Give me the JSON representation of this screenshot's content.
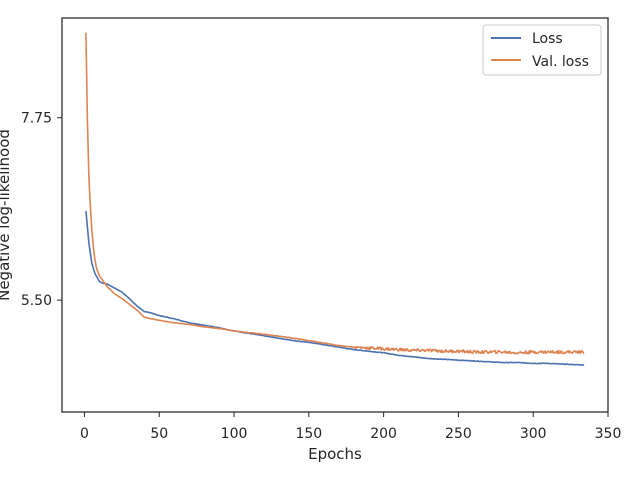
{
  "chart_data": {
    "type": "line",
    "xlabel": "Epochs",
    "ylabel": "Negative log-likelihood",
    "xlim": [
      -15,
      350
    ],
    "ylim": [
      4.12,
      8.98
    ],
    "xticks": [
      0,
      50,
      100,
      150,
      200,
      250,
      300,
      350
    ],
    "yticks": [
      5.5,
      7.75
    ],
    "ytick_labels": [
      "5.50",
      "7.75"
    ],
    "grid": false,
    "legend": "top-right",
    "series": [
      {
        "name": "Loss",
        "color": "#4c72b0",
        "noise": 0,
        "x": [
          1,
          3,
          5,
          7,
          10,
          12,
          15,
          20,
          25,
          30,
          35,
          40,
          45,
          50,
          60,
          70,
          80,
          90,
          100,
          120,
          140,
          150,
          160,
          170,
          180,
          190,
          200,
          210,
          220,
          230,
          240,
          250,
          260,
          270,
          280,
          290,
          300,
          310,
          320,
          334
        ],
        "y": [
          6.6,
          6.2,
          5.95,
          5.83,
          5.73,
          5.71,
          5.7,
          5.65,
          5.6,
          5.52,
          5.43,
          5.36,
          5.34,
          5.31,
          5.27,
          5.22,
          5.19,
          5.16,
          5.12,
          5.06,
          5.0,
          4.98,
          4.95,
          4.92,
          4.89,
          4.87,
          4.85,
          4.82,
          4.8,
          4.78,
          4.77,
          4.76,
          4.75,
          4.74,
          4.73,
          4.73,
          4.72,
          4.72,
          4.71,
          4.7
        ]
      },
      {
        "name": "Val. loss",
        "color": "#dd8452",
        "noise": 0.018,
        "x": [
          1,
          2,
          3,
          4,
          5,
          6,
          7,
          8,
          10,
          12,
          15,
          20,
          25,
          30,
          35,
          40,
          45,
          50,
          60,
          70,
          80,
          90,
          100,
          120,
          140,
          150,
          160,
          170,
          180,
          190,
          200,
          210,
          220,
          230,
          240,
          250,
          260,
          270,
          280,
          290,
          300,
          310,
          320,
          334
        ],
        "y": [
          8.8,
          7.7,
          7.0,
          6.65,
          6.35,
          6.15,
          6.0,
          5.9,
          5.8,
          5.75,
          5.67,
          5.58,
          5.52,
          5.45,
          5.38,
          5.29,
          5.27,
          5.25,
          5.22,
          5.2,
          5.17,
          5.15,
          5.12,
          5.08,
          5.03,
          5.0,
          4.97,
          4.94,
          4.92,
          4.91,
          4.9,
          4.89,
          4.88,
          4.88,
          4.87,
          4.87,
          4.86,
          4.86,
          4.86,
          4.85,
          4.86,
          4.86,
          4.86,
          4.86
        ]
      }
    ]
  }
}
